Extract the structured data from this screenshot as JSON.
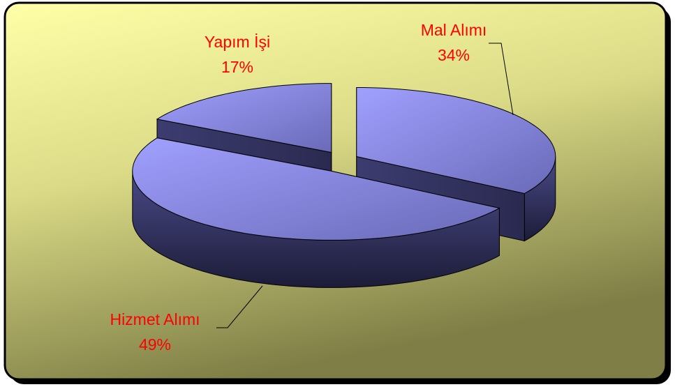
{
  "chart_data": {
    "type": "pie",
    "categories": [
      "Mal Alımı",
      "Hizmet Alımı",
      "Yapım İşi"
    ],
    "values": [
      34,
      49,
      17
    ],
    "value_labels": [
      "34%",
      "49%",
      "17%"
    ],
    "label_color": "#ff0000"
  }
}
